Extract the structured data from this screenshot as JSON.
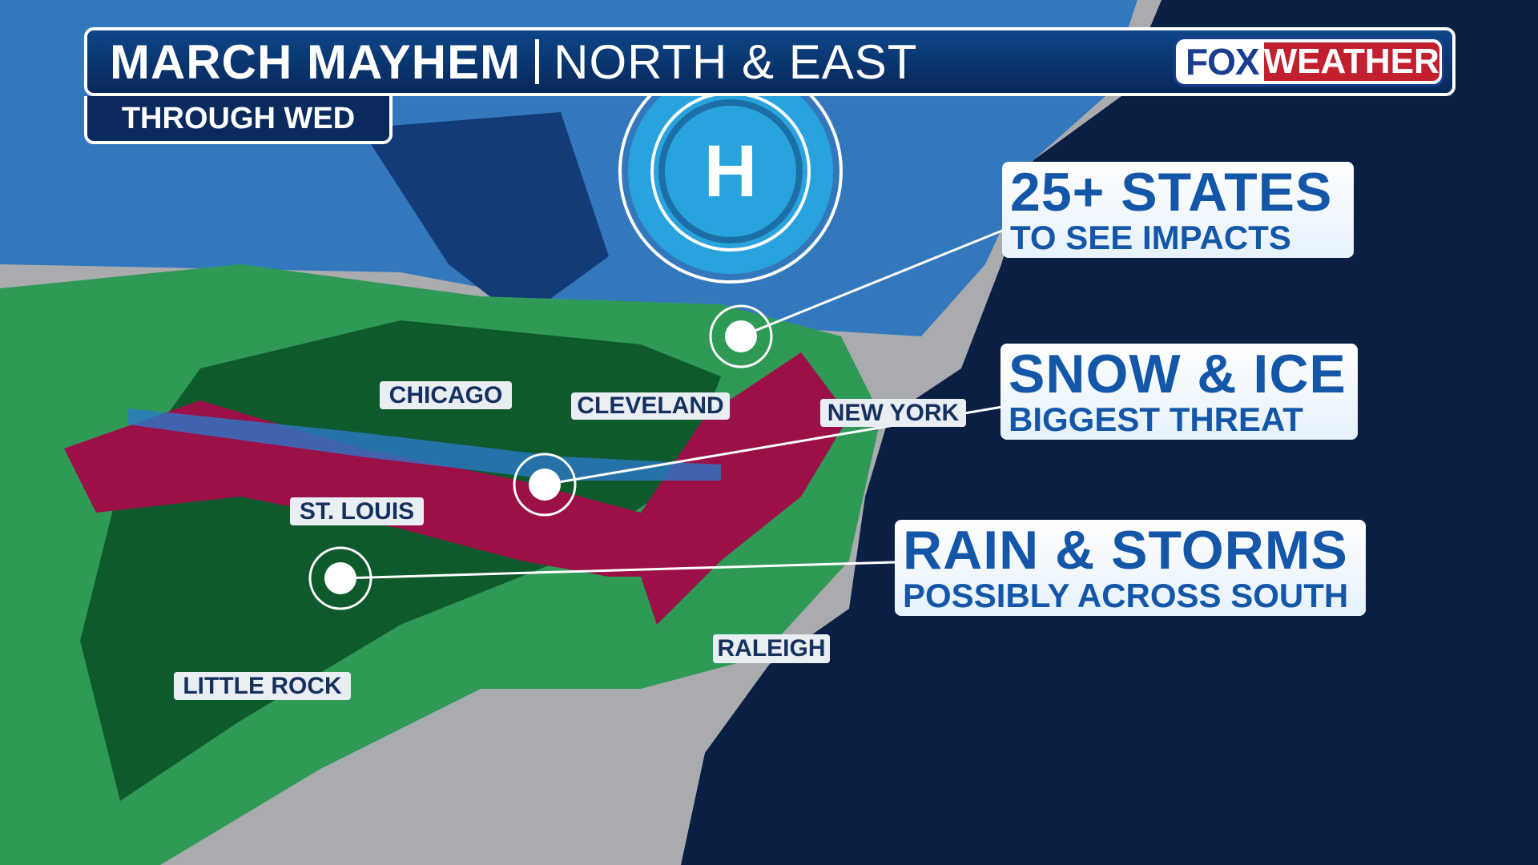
{
  "header": {
    "title": "MARCH MAYHEM",
    "subtitle": "NORTH & EAST",
    "timeframe": "THROUGH WED"
  },
  "logo": {
    "part1": "FOX",
    "part2": "WEATHER"
  },
  "pressure_center": {
    "label": "H"
  },
  "callouts": [
    {
      "headline": "25+ STATES",
      "detail": "TO SEE IMPACTS"
    },
    {
      "headline": "SNOW & ICE",
      "detail": "BIGGEST THREAT"
    },
    {
      "headline": "RAIN & STORMS",
      "detail": "POSSIBLY ACROSS SOUTH"
    }
  ],
  "cities": [
    "CHICAGO",
    "CLEVELAND",
    "NEW YORK",
    "ST. LOUIS",
    "LITTLE ROCK",
    "RALEIGH"
  ],
  "colors": {
    "snow": "#1f6fc0",
    "ice": "#9c1048",
    "rain": "#2f9a55",
    "heavy_rain": "#0f5a2c",
    "land": "#a9abae",
    "ocean": "#0b1f45",
    "brand_blue": "#1b3d8f",
    "brand_red": "#c2202f"
  }
}
